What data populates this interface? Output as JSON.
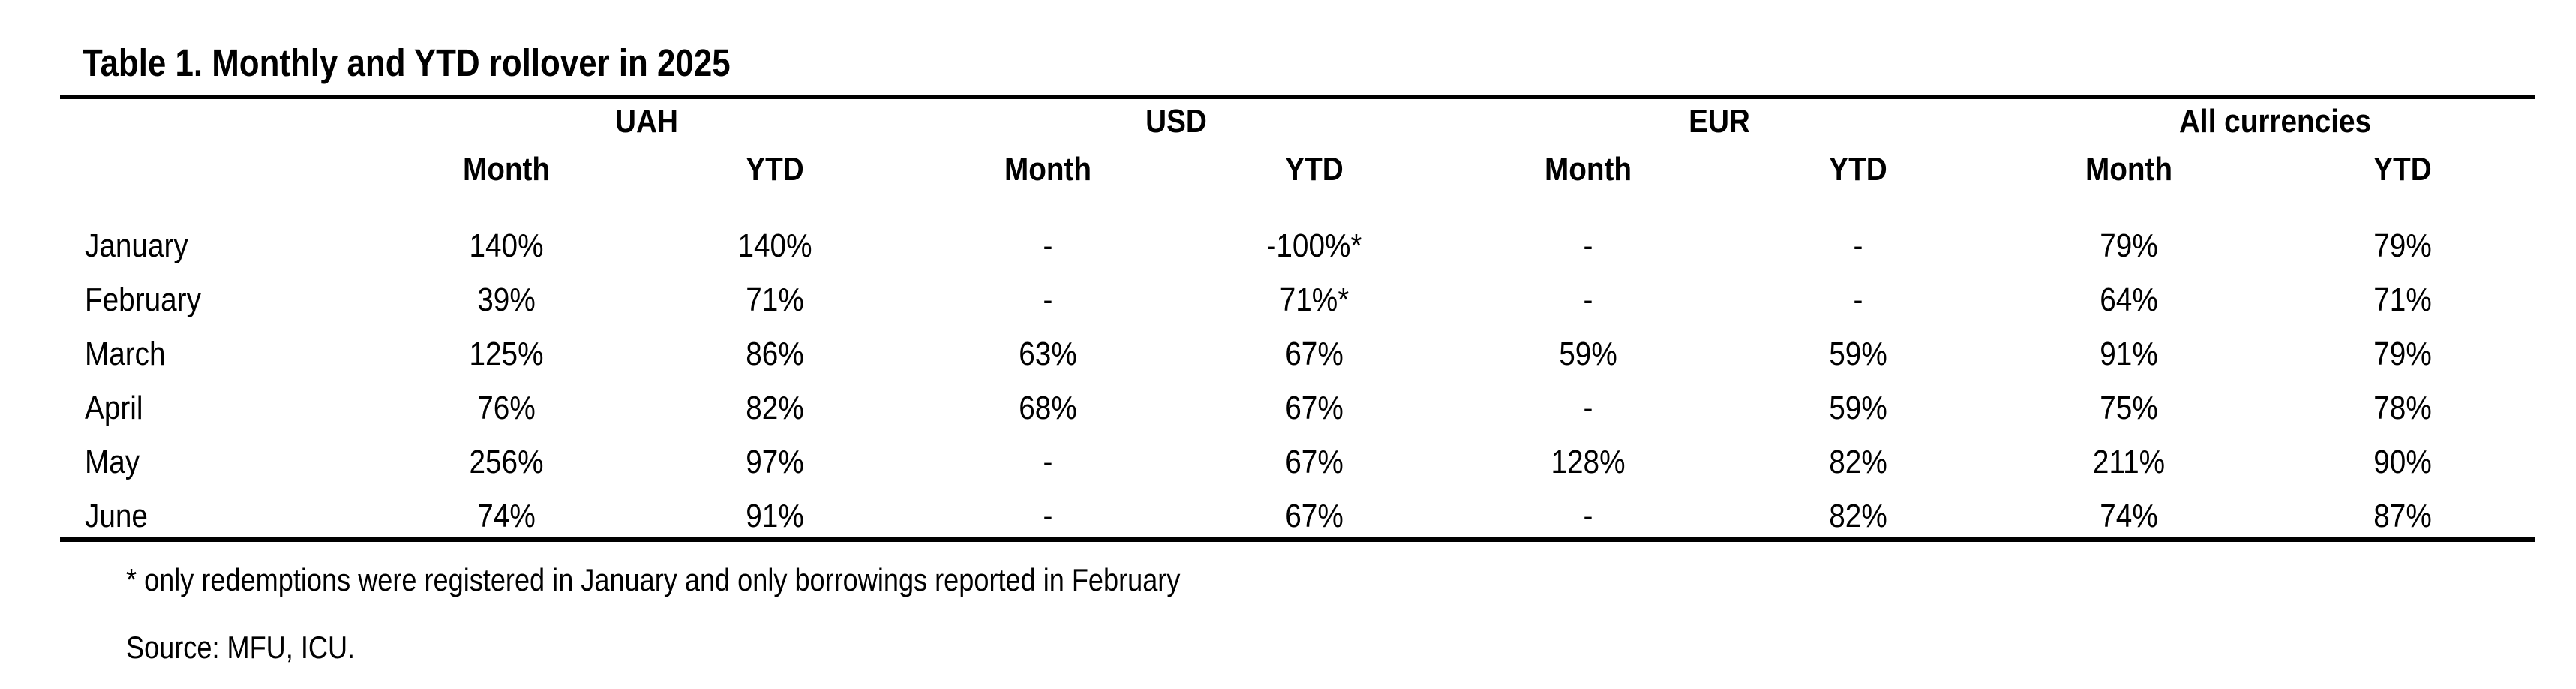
{
  "table": {
    "title": "Table 1. Monthly and YTD rollover in 2025",
    "groups": [
      "UAH",
      "USD",
      "EUR",
      "All currencies"
    ],
    "subheaders": [
      "Month",
      "YTD",
      "Month",
      "YTD",
      "Month",
      "YTD",
      "Month",
      "YTD"
    ],
    "rows": [
      {
        "label": "January",
        "values": [
          "140%",
          "140%",
          "-",
          "-100%*",
          "-",
          "-",
          "79%",
          "79%"
        ]
      },
      {
        "label": "February",
        "values": [
          "39%",
          "71%",
          "-",
          "71%*",
          "-",
          "-",
          "64%",
          "71%"
        ]
      },
      {
        "label": "March",
        "values": [
          "125%",
          "86%",
          "63%",
          "67%",
          "59%",
          "59%",
          "91%",
          "79%"
        ]
      },
      {
        "label": "April",
        "values": [
          "76%",
          "82%",
          "68%",
          "67%",
          "-",
          "59%",
          "75%",
          "78%"
        ]
      },
      {
        "label": "May",
        "values": [
          "256%",
          "97%",
          "-",
          "67%",
          "128%",
          "82%",
          "211%",
          "90%"
        ]
      },
      {
        "label": "June",
        "values": [
          "74%",
          "91%",
          "-",
          "67%",
          "-",
          "82%",
          "74%",
          "87%"
        ]
      }
    ],
    "footnote": "* only redemptions were registered in January and only borrowings reported in February",
    "source": "Source: MFU, ICU."
  }
}
